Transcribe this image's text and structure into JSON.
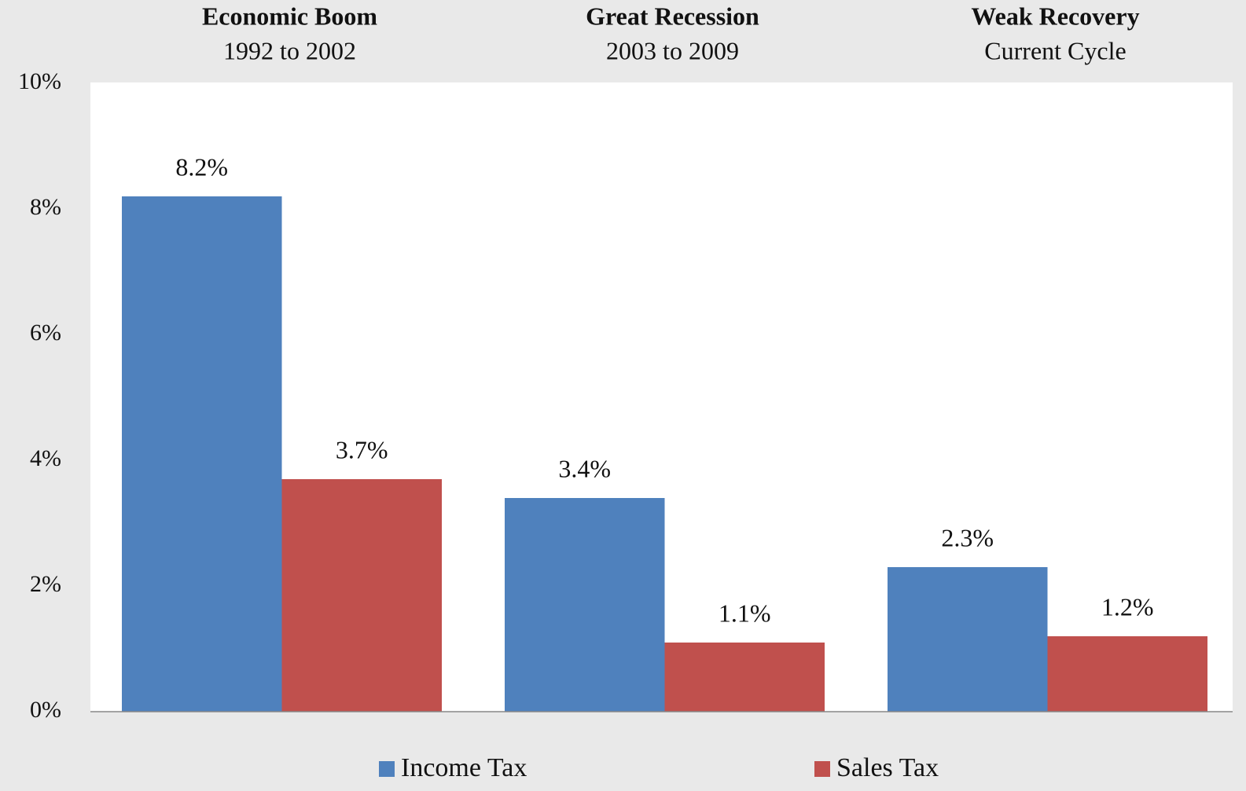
{
  "chart_data": {
    "type": "bar",
    "categories": [
      "Economic Boom",
      "Great Recession",
      "Weak Recovery"
    ],
    "category_subtitles": [
      "1992 to 2002",
      "2003 to 2009",
      "Current Cycle"
    ],
    "series": [
      {
        "name": "Income Tax",
        "color": "#4f81bd",
        "values": [
          8.2,
          3.4,
          2.3
        ],
        "value_labels": [
          "8.2%",
          "3.4%",
          "2.3%"
        ]
      },
      {
        "name": "Sales Tax",
        "color": "#c0504d",
        "values": [
          3.7,
          1.1,
          1.2
        ],
        "value_labels": [
          "3.7%",
          "1.1%",
          "1.2%"
        ]
      }
    ],
    "ylim": [
      0,
      10
    ],
    "yticks": [
      {
        "value": 0,
        "label": "0%"
      },
      {
        "value": 2,
        "label": "2%"
      },
      {
        "value": 4,
        "label": "4%"
      },
      {
        "value": 6,
        "label": "6%"
      },
      {
        "value": 8,
        "label": "8%"
      },
      {
        "value": 10,
        "label": "10%"
      }
    ],
    "grid": false,
    "legend": "bottom"
  }
}
